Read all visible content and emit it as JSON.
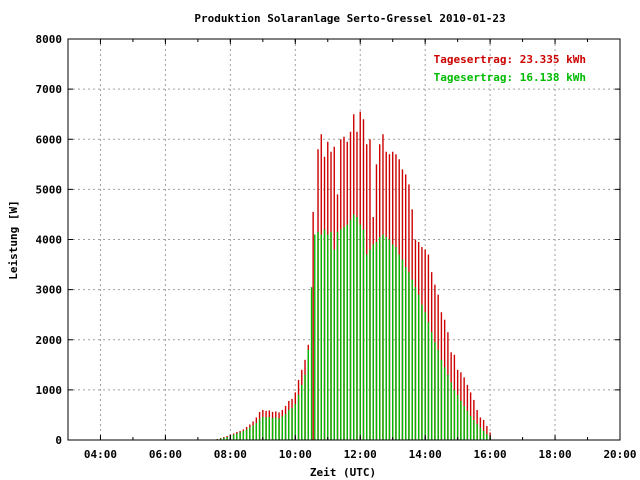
{
  "chart_data": {
    "type": "bar",
    "title": "Produktion Solaranlage Serto-Gressel 2010-01-23",
    "xlabel": "Zeit (UTC)",
    "ylabel": "Leistung [W]",
    "ylim": [
      0,
      8000
    ],
    "y_ticks": [
      "0",
      "1000",
      "2000",
      "3000",
      "4000",
      "5000",
      "6000",
      "7000",
      "8000"
    ],
    "x_ticks": [
      {
        "label": "04:00",
        "t": 4
      },
      {
        "label": "06:00",
        "t": 6
      },
      {
        "label": "08:00",
        "t": 8
      },
      {
        "label": "10:00",
        "t": 10
      },
      {
        "label": "12:00",
        "t": 12
      },
      {
        "label": "14:00",
        "t": 14
      },
      {
        "label": "16:00",
        "t": 16
      },
      {
        "label": "18:00",
        "t": 18
      },
      {
        "label": "20:00",
        "t": 20
      }
    ],
    "xlim": [
      3,
      20
    ],
    "grid": true,
    "legend_position": "top-right",
    "colors": {
      "series1": "#cc0000",
      "series2": "#00bb00"
    },
    "series": [
      {
        "name": "Tagesertrag: 23.335 kWh",
        "color": "#cc0000",
        "points": [
          [
            7.6,
            20
          ],
          [
            7.7,
            40
          ],
          [
            7.8,
            60
          ],
          [
            7.9,
            80
          ],
          [
            8.0,
            110
          ],
          [
            8.1,
            130
          ],
          [
            8.2,
            160
          ],
          [
            8.3,
            180
          ],
          [
            8.4,
            210
          ],
          [
            8.5,
            260
          ],
          [
            8.6,
            310
          ],
          [
            8.7,
            370
          ],
          [
            8.8,
            450
          ],
          [
            8.9,
            560
          ],
          [
            9.0,
            600
          ],
          [
            9.1,
            580
          ],
          [
            9.2,
            590
          ],
          [
            9.3,
            560
          ],
          [
            9.4,
            570
          ],
          [
            9.5,
            550
          ],
          [
            9.6,
            600
          ],
          [
            9.7,
            680
          ],
          [
            9.8,
            780
          ],
          [
            9.9,
            820
          ],
          [
            10.0,
            950
          ],
          [
            10.1,
            1200
          ],
          [
            10.2,
            1400
          ],
          [
            10.3,
            1600
          ],
          [
            10.4,
            1900
          ],
          [
            10.55,
            4550
          ],
          [
            10.7,
            5800
          ],
          [
            10.8,
            6100
          ],
          [
            10.9,
            5650
          ],
          [
            11.0,
            5950
          ],
          [
            11.1,
            5750
          ],
          [
            11.2,
            5850
          ],
          [
            11.3,
            4900
          ],
          [
            11.4,
            6000
          ],
          [
            11.5,
            6050
          ],
          [
            11.6,
            5950
          ],
          [
            11.7,
            6150
          ],
          [
            11.8,
            6500
          ],
          [
            11.9,
            6150
          ],
          [
            12.0,
            6550
          ],
          [
            12.1,
            6400
          ],
          [
            12.2,
            5900
          ],
          [
            12.3,
            6000
          ],
          [
            12.4,
            4450
          ],
          [
            12.5,
            5500
          ],
          [
            12.6,
            5900
          ],
          [
            12.7,
            6100
          ],
          [
            12.8,
            5750
          ],
          [
            12.9,
            5700
          ],
          [
            13.0,
            5750
          ],
          [
            13.1,
            5700
          ],
          [
            13.2,
            5600
          ],
          [
            13.3,
            5400
          ],
          [
            13.4,
            5300
          ],
          [
            13.5,
            5100
          ],
          [
            13.6,
            4600
          ],
          [
            13.7,
            4000
          ],
          [
            13.8,
            3950
          ],
          [
            13.9,
            3850
          ],
          [
            14.0,
            3800
          ],
          [
            14.1,
            3700
          ],
          [
            14.2,
            3350
          ],
          [
            14.3,
            3100
          ],
          [
            14.4,
            2900
          ],
          [
            14.5,
            2550
          ],
          [
            14.6,
            2400
          ],
          [
            14.7,
            2150
          ],
          [
            14.8,
            1750
          ],
          [
            14.9,
            1700
          ],
          [
            15.0,
            1400
          ],
          [
            15.1,
            1350
          ],
          [
            15.2,
            1250
          ],
          [
            15.3,
            1100
          ],
          [
            15.4,
            950
          ],
          [
            15.5,
            800
          ],
          [
            15.6,
            600
          ],
          [
            15.7,
            450
          ],
          [
            15.8,
            400
          ],
          [
            15.9,
            280
          ],
          [
            16.0,
            150
          ]
        ]
      },
      {
        "name": "Tagesertrag: 16.138 kWh",
        "color": "#00bb00",
        "points": [
          [
            7.6,
            15
          ],
          [
            7.7,
            30
          ],
          [
            7.8,
            45
          ],
          [
            7.9,
            60
          ],
          [
            8.0,
            90
          ],
          [
            8.1,
            110
          ],
          [
            8.2,
            130
          ],
          [
            8.3,
            150
          ],
          [
            8.4,
            180
          ],
          [
            8.5,
            210
          ],
          [
            8.6,
            250
          ],
          [
            8.7,
            290
          ],
          [
            8.8,
            340
          ],
          [
            8.9,
            420
          ],
          [
            9.0,
            460
          ],
          [
            9.1,
            450
          ],
          [
            9.2,
            460
          ],
          [
            9.3,
            440
          ],
          [
            9.4,
            450
          ],
          [
            9.5,
            430
          ],
          [
            9.6,
            470
          ],
          [
            9.7,
            520
          ],
          [
            9.8,
            600
          ],
          [
            9.9,
            640
          ],
          [
            10.0,
            720
          ],
          [
            10.1,
            900
          ],
          [
            10.2,
            1100
          ],
          [
            10.3,
            1300
          ],
          [
            10.4,
            1800
          ],
          [
            10.5,
            3050
          ],
          [
            10.6,
            4100
          ],
          [
            10.7,
            4150
          ],
          [
            10.8,
            4100
          ],
          [
            10.9,
            4200
          ],
          [
            11.0,
            4100
          ],
          [
            11.1,
            4150
          ],
          [
            11.2,
            3800
          ],
          [
            11.3,
            4150
          ],
          [
            11.4,
            4200
          ],
          [
            11.5,
            4250
          ],
          [
            11.6,
            4300
          ],
          [
            11.7,
            4400
          ],
          [
            11.8,
            4500
          ],
          [
            11.9,
            4450
          ],
          [
            12.0,
            4300
          ],
          [
            12.1,
            4200
          ],
          [
            12.2,
            3700
          ],
          [
            12.3,
            3800
          ],
          [
            12.4,
            3900
          ],
          [
            12.5,
            3950
          ],
          [
            12.6,
            4050
          ],
          [
            12.7,
            4100
          ],
          [
            12.8,
            4050
          ],
          [
            12.9,
            4000
          ],
          [
            13.0,
            3900
          ],
          [
            13.1,
            3850
          ],
          [
            13.2,
            3700
          ],
          [
            13.3,
            3600
          ],
          [
            13.4,
            3450
          ],
          [
            13.5,
            3350
          ],
          [
            13.6,
            3200
          ],
          [
            13.7,
            3050
          ],
          [
            13.8,
            2900
          ],
          [
            13.9,
            2700
          ],
          [
            14.0,
            2550
          ],
          [
            14.1,
            2350
          ],
          [
            14.2,
            2150
          ],
          [
            14.3,
            1950
          ],
          [
            14.4,
            1800
          ],
          [
            14.5,
            1600
          ],
          [
            14.6,
            1450
          ],
          [
            14.7,
            1300
          ],
          [
            14.8,
            1150
          ],
          [
            14.9,
            1000
          ],
          [
            15.0,
            900
          ],
          [
            15.1,
            780
          ],
          [
            15.2,
            680
          ],
          [
            15.3,
            580
          ],
          [
            15.4,
            480
          ],
          [
            15.5,
            400
          ],
          [
            15.6,
            320
          ],
          [
            15.7,
            250
          ],
          [
            15.8,
            180
          ],
          [
            15.9,
            120
          ],
          [
            16.0,
            60
          ]
        ]
      }
    ]
  }
}
